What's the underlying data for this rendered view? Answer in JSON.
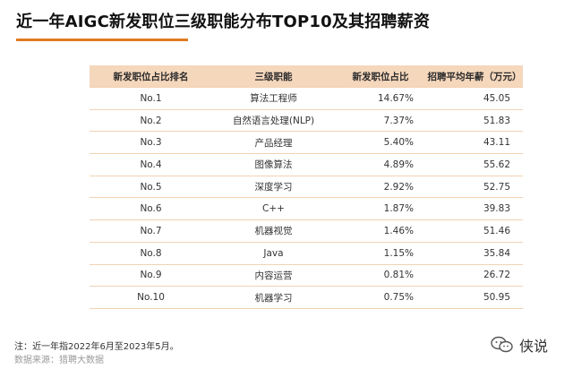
{
  "page": {
    "title": "近一年AIGC新发职位三级职能分布TOP10及其招聘薪资"
  },
  "table": {
    "headers": [
      "新发职位占比排名",
      "三级职能",
      "新发职位占比",
      "招聘平均年薪（万元）"
    ],
    "rows": [
      [
        "No.1",
        "算法工程师",
        "14.67%",
        "45.05"
      ],
      [
        "No.2",
        "自然语言处理(NLP)",
        "7.37%",
        "51.83"
      ],
      [
        "No.3",
        "产品经理",
        "5.40%",
        "43.11"
      ],
      [
        "No.4",
        "图像算法",
        "4.89%",
        "55.62"
      ],
      [
        "No.5",
        "深度学习",
        "2.92%",
        "52.75"
      ],
      [
        "No.6",
        "C++",
        "1.87%",
        "39.83"
      ],
      [
        "No.7",
        "机器视觉",
        "1.46%",
        "51.46"
      ],
      [
        "No.8",
        "Java",
        "1.15%",
        "35.84"
      ],
      [
        "No.9",
        "内容运营",
        "0.81%",
        "26.72"
      ],
      [
        "No.10",
        "机器学习",
        "0.75%",
        "50.95"
      ]
    ]
  },
  "footer": {
    "note": "注：近一年指2022年6月至2023年5月。",
    "source": "数据来源：猎聘大数据"
  },
  "watermark": {
    "icon": "wechat-icon",
    "label": "侠说"
  },
  "colors": {
    "accent": "#e07b22",
    "header_bg": "#f5d7bc",
    "row_border": "#f1d2b4"
  }
}
